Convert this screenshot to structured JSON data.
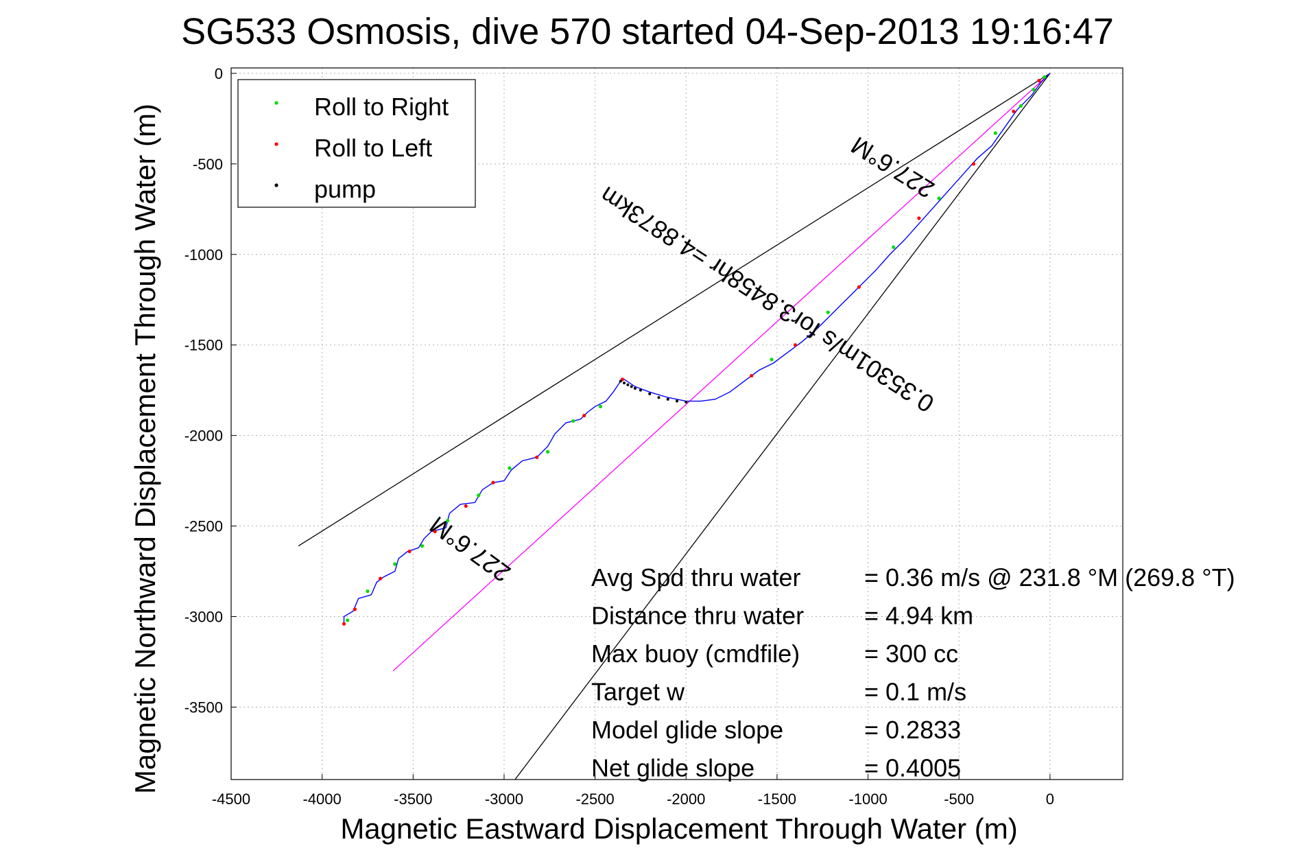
{
  "chart_data": {
    "type": "scatter",
    "title": "SG533 Osmosis, dive 570 started 04-Sep-2013 19:16:47",
    "xlabel": "Magnetic Eastward Displacement Through Water (m)",
    "ylabel": "Magnetic Northward Displacement Through Water (m)",
    "xlim": [
      -4500,
      400
    ],
    "ylim": [
      -3900,
      30
    ],
    "xticks": [
      -4500,
      -4000,
      -3500,
      -3000,
      -2500,
      -2000,
      -1500,
      -1000,
      -500,
      0
    ],
    "yticks": [
      0,
      -500,
      -1000,
      -1500,
      -2000,
      -2500,
      -3000,
      -3500
    ],
    "grid": true,
    "legend": {
      "placement": "top-left",
      "entries": [
        {
          "label": "Roll to Right",
          "color": "#00dd00"
        },
        {
          "label": "Roll to Left",
          "color": "#ff0000"
        },
        {
          "label": "pump",
          "color": "#000000"
        }
      ]
    },
    "track": {
      "color": "#0000ff",
      "points": [
        [
          0,
          0
        ],
        [
          -50,
          -50
        ],
        [
          -100,
          -120
        ],
        [
          -180,
          -200
        ],
        [
          -250,
          -300
        ],
        [
          -320,
          -400
        ],
        [
          -400,
          -470
        ],
        [
          -480,
          -560
        ],
        [
          -560,
          -650
        ],
        [
          -640,
          -740
        ],
        [
          -720,
          -830
        ],
        [
          -800,
          -920
        ],
        [
          -880,
          -1000
        ],
        [
          -960,
          -1090
        ],
        [
          -1040,
          -1170
        ],
        [
          -1120,
          -1250
        ],
        [
          -1200,
          -1330
        ],
        [
          -1280,
          -1410
        ],
        [
          -1360,
          -1480
        ],
        [
          -1440,
          -1540
        ],
        [
          -1520,
          -1600
        ],
        [
          -1600,
          -1640
        ],
        [
          -1680,
          -1700
        ],
        [
          -1760,
          -1760
        ],
        [
          -1840,
          -1800
        ],
        [
          -1920,
          -1810
        ],
        [
          -2000,
          -1810
        ],
        [
          -2100,
          -1790
        ],
        [
          -2200,
          -1760
        ],
        [
          -2280,
          -1730
        ],
        [
          -2340,
          -1690
        ],
        [
          -2360,
          -1700
        ],
        [
          -2400,
          -1760
        ],
        [
          -2440,
          -1810
        ],
        [
          -2500,
          -1840
        ],
        [
          -2540,
          -1870
        ],
        [
          -2580,
          -1910
        ],
        [
          -2660,
          -1930
        ],
        [
          -2720,
          -1990
        ],
        [
          -2760,
          -2060
        ],
        [
          -2820,
          -2120
        ],
        [
          -2900,
          -2140
        ],
        [
          -2960,
          -2190
        ],
        [
          -3000,
          -2250
        ],
        [
          -3060,
          -2260
        ],
        [
          -3120,
          -2300
        ],
        [
          -3160,
          -2370
        ],
        [
          -3240,
          -2380
        ],
        [
          -3300,
          -2430
        ],
        [
          -3320,
          -2510
        ],
        [
          -3400,
          -2530
        ],
        [
          -3440,
          -2570
        ],
        [
          -3470,
          -2620
        ],
        [
          -3530,
          -2640
        ],
        [
          -3580,
          -2680
        ],
        [
          -3600,
          -2750
        ],
        [
          -3660,
          -2780
        ],
        [
          -3700,
          -2810
        ],
        [
          -3730,
          -2880
        ],
        [
          -3800,
          -2900
        ],
        [
          -3830,
          -2970
        ],
        [
          -3880,
          -3000
        ],
        [
          -3880,
          -3050
        ]
      ]
    },
    "roll_right_points": [
      [
        -30,
        -20
      ],
      [
        -90,
        -90
      ],
      [
        -160,
        -180
      ],
      [
        -300,
        -330
      ],
      [
        -610,
        -690
      ],
      [
        -860,
        -960
      ],
      [
        -1220,
        -1320
      ],
      [
        -1530,
        -1580
      ],
      [
        -2470,
        -1840
      ],
      [
        -2620,
        -1920
      ],
      [
        -2760,
        -2090
      ],
      [
        -2970,
        -2180
      ],
      [
        -3140,
        -2330
      ],
      [
        -3310,
        -2470
      ],
      [
        -3450,
        -2610
      ],
      [
        -3600,
        -2710
      ],
      [
        -3750,
        -2860
      ],
      [
        -3860,
        -3020
      ]
    ],
    "roll_left_points": [
      [
        -60,
        -40
      ],
      [
        -200,
        -210
      ],
      [
        -420,
        -500
      ],
      [
        -720,
        -800
      ],
      [
        -1050,
        -1180
      ],
      [
        -1400,
        -1500
      ],
      [
        -1640,
        -1670
      ],
      [
        -2350,
        -1690
      ],
      [
        -2560,
        -1890
      ],
      [
        -2820,
        -2120
      ],
      [
        -3060,
        -2260
      ],
      [
        -3210,
        -2390
      ],
      [
        -3380,
        -2530
      ],
      [
        -3520,
        -2640
      ],
      [
        -3680,
        -2790
      ],
      [
        -3820,
        -2960
      ],
      [
        -3880,
        -3040
      ]
    ],
    "pump_points": [
      [
        -2360,
        -1700
      ],
      [
        -2340,
        -1710
      ],
      [
        -2320,
        -1720
      ],
      [
        -2300,
        -1730
      ],
      [
        -2280,
        -1740
      ],
      [
        -2250,
        -1750
      ],
      [
        -2200,
        -1770
      ],
      [
        -2150,
        -1790
      ],
      [
        -2100,
        -1800
      ],
      [
        -2050,
        -1810
      ],
      [
        -2000,
        -1815
      ]
    ],
    "lines": [
      {
        "name": "wedge-upper",
        "color": "#000000",
        "points": [
          [
            0,
            0
          ],
          [
            -4130,
            -2610
          ]
        ]
      },
      {
        "name": "wedge-lower",
        "color": "#000000",
        "points": [
          [
            0,
            0
          ],
          [
            -2940,
            -3900
          ]
        ]
      },
      {
        "name": "heading",
        "color": "#ff00ff",
        "points": [
          [
            0,
            0
          ],
          [
            -3610,
            -3300
          ]
        ]
      }
    ],
    "annotations": {
      "upper_heading": {
        "text": "227.6°M",
        "x": -840,
        "y": -480,
        "angle": 212
      },
      "rate": {
        "text": "0.35301m/s for3.8458hr =4.8873km",
        "x": -1530,
        "y": -1210,
        "angle": 213
      },
      "lower_heading": {
        "text": "227.6°M",
        "x": -3160,
        "y": -2590,
        "angle": 216
      }
    },
    "stats": [
      {
        "label": "Avg Spd thru water",
        "value": "=  0.36 m/s @ 231.8 °M (269.8 °T)"
      },
      {
        "label": "Distance thru water",
        "value": "=  4.94 km"
      },
      {
        "label": "Max buoy (cmdfile)",
        "value": "= 300 cc"
      },
      {
        "label": "Target w",
        "value": "= 0.1 m/s"
      },
      {
        "label": "Model glide slope",
        "value": "= 0.2833"
      },
      {
        "label": "Net glide slope",
        "value": "= 0.4005"
      }
    ]
  }
}
